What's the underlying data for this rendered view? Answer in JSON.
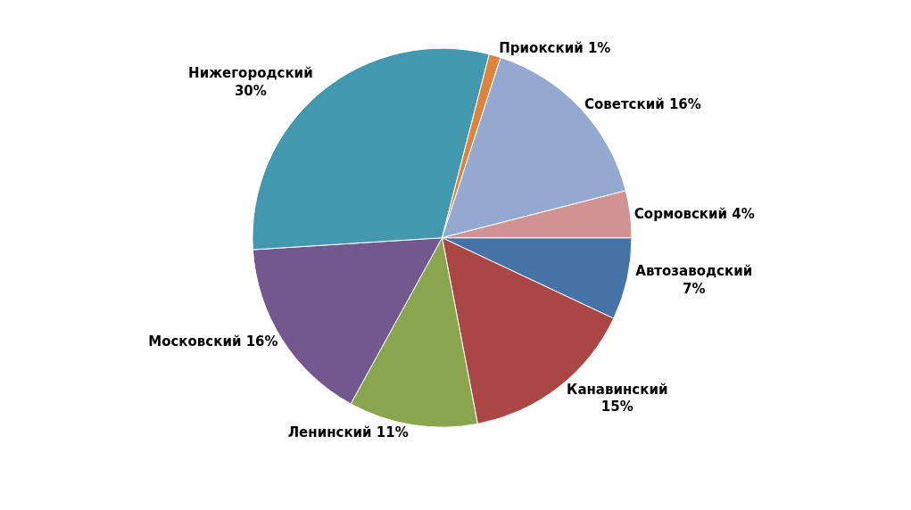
{
  "chart_data": {
    "type": "pie",
    "categories": [
      "Автозаводский",
      "Канавинский",
      "Ленинский",
      "Московский",
      "Нижегородский",
      "Приокский",
      "Советский",
      "Сормовский"
    ],
    "values": [
      7,
      15,
      11,
      16,
      30,
      1,
      16,
      4
    ],
    "value_labels": [
      "7%",
      "15%",
      "11%",
      "16%",
      "30%",
      "1%",
      "16%",
      "4%"
    ],
    "colors": [
      "#4572a7",
      "#aa4643",
      "#89a54e",
      "#71588f",
      "#4198af",
      "#db843d",
      "#93a9cf",
      "#d19392"
    ],
    "legend": false
  }
}
